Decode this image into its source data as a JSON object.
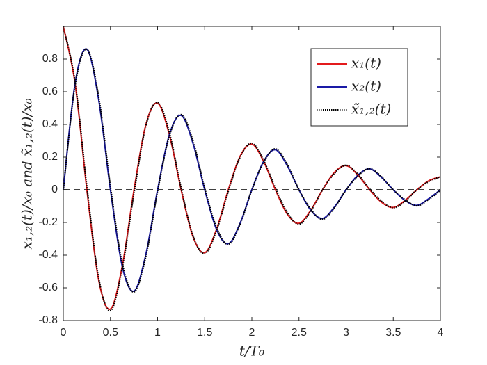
{
  "chart_data": {
    "type": "line",
    "x_label": "t/T₀",
    "y_label": "x₁,₂(t)/x₀ and x̃₁,₂(t)/x₀",
    "x": [
      0,
      0.125,
      0.25,
      0.375,
      0.5,
      0.625,
      0.75,
      0.875,
      1,
      1.125,
      1.25,
      1.375,
      1.5,
      1.625,
      1.75,
      1.875,
      2,
      2.125,
      2.25,
      2.375,
      2.5,
      2.625,
      2.75,
      2.875,
      3,
      3.125,
      3.25,
      3.375,
      3.5,
      3.625,
      3.75,
      3.875,
      4
    ],
    "series": [
      {
        "name": "x₁(t)",
        "color": "#e31a1c",
        "dash": false,
        "values": [
          1,
          0.651,
          0,
          -0.552,
          -0.73,
          -0.468,
          0,
          0.397,
          0.53,
          0.337,
          0,
          -0.286,
          -0.385,
          -0.242,
          0,
          0.205,
          0.28,
          0.174,
          0,
          -0.148,
          -0.205,
          -0.125,
          0,
          0.106,
          0.148,
          0.09,
          0,
          -0.076,
          -0.108,
          -0.065,
          0,
          0.055,
          0.08
        ]
      },
      {
        "name": "x₂(t)",
        "color": "#1a1aa6",
        "dash": false,
        "values": [
          0,
          0.651,
          0.86,
          0.552,
          0,
          -0.468,
          -0.62,
          -0.397,
          0,
          0.337,
          0.455,
          0.286,
          0,
          -0.242,
          -0.33,
          -0.205,
          0,
          0.174,
          0.245,
          0.148,
          0,
          -0.125,
          -0.175,
          -0.106,
          0,
          0.09,
          0.128,
          0.076,
          0,
          -0.065,
          -0.095,
          -0.055,
          0
        ]
      },
      {
        "name": "x̃₁,₂(t)",
        "color": "#000000",
        "dash": true,
        "values": [
          1,
          0.66,
          0.02,
          -0.54,
          -0.74,
          -0.48,
          -0.02,
          0.39,
          0.535,
          0.35,
          0.01,
          -0.28,
          -0.39,
          -0.25,
          -0.01,
          0.2,
          0.285,
          0.18,
          0.01,
          -0.14,
          -0.21,
          -0.13,
          0,
          0.1,
          0.15,
          0.095,
          0.005,
          -0.07,
          -0.11,
          -0.07,
          0,
          0.05,
          0.08
        ]
      },
      {
        "color": "#000000",
        "dash": true,
        "values": [
          0,
          0.64,
          0.86,
          0.57,
          0.02,
          -0.45,
          -0.625,
          -0.41,
          -0.01,
          0.33,
          0.46,
          0.3,
          0.01,
          -0.23,
          -0.335,
          -0.21,
          0,
          0.17,
          0.25,
          0.155,
          0,
          -0.12,
          -0.18,
          -0.11,
          0,
          0.085,
          0.13,
          0.08,
          0,
          -0.06,
          -0.098,
          -0.06,
          -0.003
        ]
      }
    ],
    "hline": 0,
    "xlim": [
      0,
      4
    ],
    "xticks": [
      0,
      0.5,
      1,
      1.5,
      2,
      2.5,
      3,
      3.5,
      4
    ],
    "ylim": [
      -0.8,
      1
    ],
    "yticks": [
      -0.8,
      -0.6,
      -0.4,
      -0.2,
      0,
      0.2,
      0.4,
      0.6,
      0.8
    ],
    "legend": "upper right"
  }
}
